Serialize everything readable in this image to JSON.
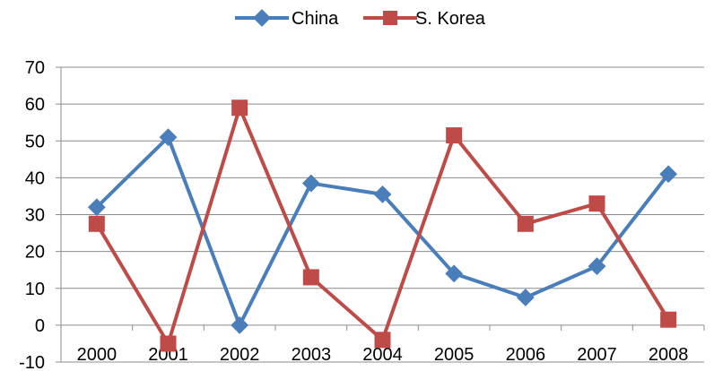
{
  "chart_data": {
    "type": "line",
    "title": "",
    "xlabel": "",
    "ylabel": "",
    "categories": [
      "2000",
      "2001",
      "2002",
      "2003",
      "2004",
      "2005",
      "2006",
      "2007",
      "2008"
    ],
    "y_ticks": [
      "-10",
      "0",
      "10",
      "20",
      "30",
      "40",
      "50",
      "60",
      "70"
    ],
    "ylim": [
      -10,
      70
    ],
    "grid": true,
    "legend_position": "top",
    "series": [
      {
        "name": "China",
        "color": "#4a7ebb",
        "marker": "diamond",
        "values": [
          32,
          51,
          0,
          38.5,
          35.5,
          14,
          7.5,
          16,
          41
        ]
      },
      {
        "name": "S. Korea",
        "color": "#be4b48",
        "marker": "square",
        "values": [
          27.5,
          -5,
          59,
          13,
          -4,
          51.5,
          27.5,
          33,
          1.5
        ]
      }
    ]
  }
}
